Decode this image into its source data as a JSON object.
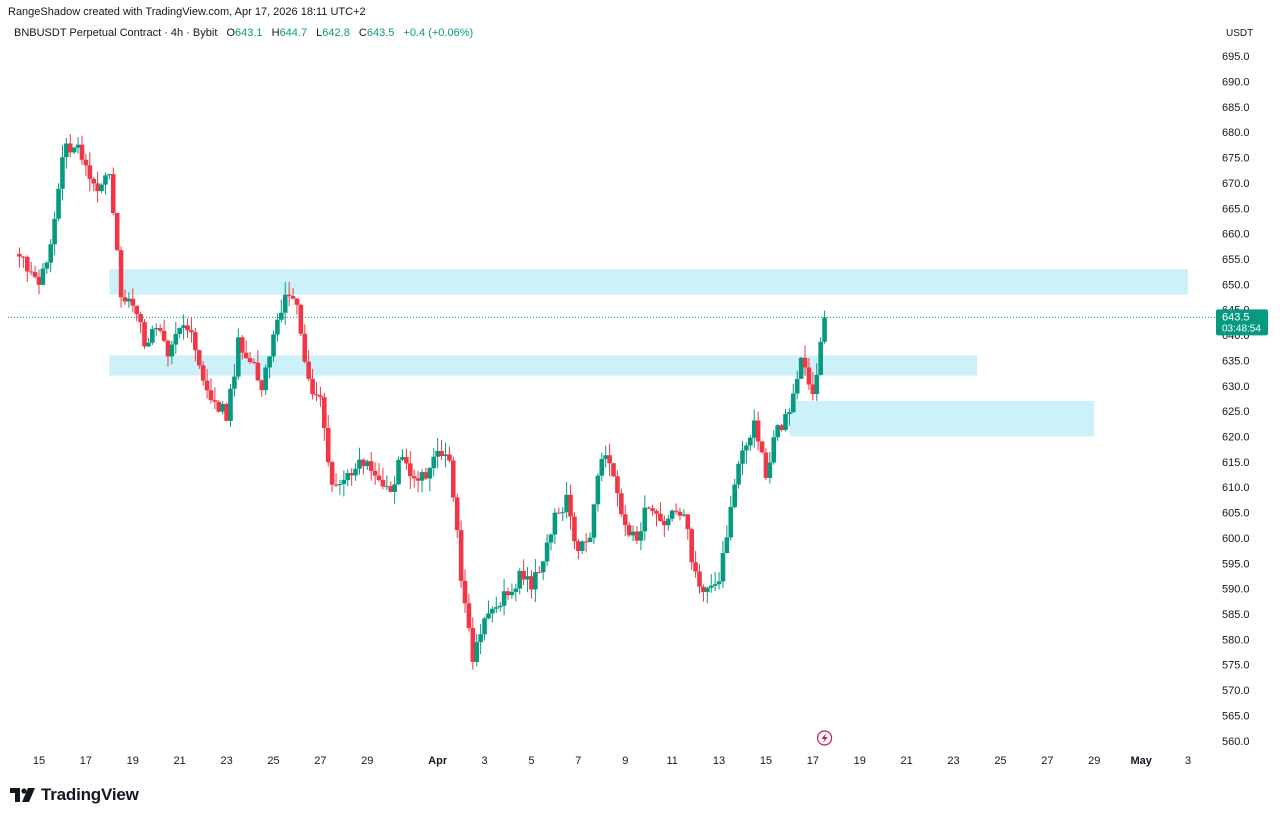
{
  "header": {
    "credit": "RangeShadow created with TradingView.com, Apr 17, 2026 18:11 UTC+2",
    "symbol": "BNBUSDT Perpetual Contract · 4h · Bybit",
    "o_label": "O",
    "o_value": "643.1",
    "h_label": "H",
    "h_value": "644.7",
    "l_label": "L",
    "l_value": "642.8",
    "c_label": "C",
    "c_value": "643.5",
    "change": "+0.4 (+0.06%)",
    "currency": "USDT"
  },
  "price_badge": {
    "price": "643.5",
    "countdown": "03:48:54"
  },
  "brand": {
    "name": "TradingView",
    "icon": "tradingview-logo-icon"
  },
  "colors": {
    "up": "#089981",
    "down": "#f23645",
    "zone": "#cdf1f8",
    "badge": "#089981"
  },
  "chart_data": {
    "type": "candlestick",
    "interval": "4h",
    "ylim": [
      557,
      697
    ],
    "ytick_values": [
      560,
      565,
      570,
      575,
      580,
      585,
      590,
      595,
      600,
      605,
      610,
      615,
      620,
      625,
      630,
      635,
      640,
      645,
      650,
      655,
      660,
      665,
      670,
      675,
      680,
      685,
      690,
      695
    ],
    "yticks": [
      "560.0",
      "565.0",
      "570.0",
      "575.0",
      "580.0",
      "585.0",
      "590.0",
      "595.0",
      "600.0",
      "605.0",
      "610.0",
      "615.0",
      "620.0",
      "625.0",
      "630.0",
      "635.0",
      "640.0",
      "645.0",
      "650.0",
      "655.0",
      "660.0",
      "665.0",
      "670.0",
      "675.0",
      "680.0",
      "685.0",
      "690.0",
      "695.0"
    ],
    "xticks": [
      {
        "label": "15",
        "date": "2026-03-15"
      },
      {
        "label": "17",
        "date": "2026-03-17"
      },
      {
        "label": "19",
        "date": "2026-03-19"
      },
      {
        "label": "21",
        "date": "2026-03-21"
      },
      {
        "label": "23",
        "date": "2026-03-23"
      },
      {
        "label": "25",
        "date": "2026-03-25"
      },
      {
        "label": "27",
        "date": "2026-03-27"
      },
      {
        "label": "29",
        "date": "2026-03-29"
      },
      {
        "label": "Apr",
        "date": "2026-04-01"
      },
      {
        "label": "3",
        "date": "2026-04-03"
      },
      {
        "label": "5",
        "date": "2026-04-05"
      },
      {
        "label": "7",
        "date": "2026-04-07"
      },
      {
        "label": "9",
        "date": "2026-04-09"
      },
      {
        "label": "11",
        "date": "2026-04-11"
      },
      {
        "label": "13",
        "date": "2026-04-13"
      },
      {
        "label": "15",
        "date": "2026-04-15"
      },
      {
        "label": "17",
        "date": "2026-04-17"
      },
      {
        "label": "19",
        "date": "2026-04-19"
      },
      {
        "label": "21",
        "date": "2026-04-21"
      },
      {
        "label": "23",
        "date": "2026-04-23"
      },
      {
        "label": "25",
        "date": "2026-04-25"
      },
      {
        "label": "27",
        "date": "2026-04-27"
      },
      {
        "label": "29",
        "date": "2026-04-29"
      },
      {
        "label": "May",
        "date": "2026-05-01"
      },
      {
        "label": "3",
        "date": "2026-05-03"
      }
    ],
    "anchors": [
      {
        "date": "2026-03-14",
        "close": 656
      },
      {
        "date": "2026-03-15",
        "close": 651
      },
      {
        "date": "2026-03-15T12:00",
        "close": 658
      },
      {
        "date": "2026-03-16",
        "close": 676
      },
      {
        "date": "2026-03-16T12:00",
        "close": 678
      },
      {
        "date": "2026-03-17",
        "close": 674
      },
      {
        "date": "2026-03-17T12:00",
        "close": 668
      },
      {
        "date": "2026-03-18",
        "close": 672
      },
      {
        "date": "2026-03-18T12:00",
        "close": 648
      },
      {
        "date": "2026-03-19",
        "close": 645
      },
      {
        "date": "2026-03-19T12:00",
        "close": 639
      },
      {
        "date": "2026-03-20",
        "close": 642
      },
      {
        "date": "2026-03-20T12:00",
        "close": 637
      },
      {
        "date": "2026-03-21",
        "close": 643
      },
      {
        "date": "2026-03-21T12:00",
        "close": 640
      },
      {
        "date": "2026-03-22",
        "close": 630
      },
      {
        "date": "2026-03-22T12:00",
        "close": 627
      },
      {
        "date": "2026-03-23",
        "close": 624
      },
      {
        "date": "2026-03-23T12:00",
        "close": 638
      },
      {
        "date": "2026-03-24",
        "close": 636
      },
      {
        "date": "2026-03-24T12:00",
        "close": 630
      },
      {
        "date": "2026-03-25",
        "close": 641
      },
      {
        "date": "2026-03-25T12:00",
        "close": 648
      },
      {
        "date": "2026-03-26",
        "close": 645
      },
      {
        "date": "2026-03-26T12:00",
        "close": 630
      },
      {
        "date": "2026-03-27",
        "close": 627
      },
      {
        "date": "2026-03-27T12:00",
        "close": 610
      },
      {
        "date": "2026-03-28",
        "close": 613
      },
      {
        "date": "2026-03-28T12:00",
        "close": 613
      },
      {
        "date": "2026-03-29",
        "close": 616
      },
      {
        "date": "2026-03-29T12:00",
        "close": 610
      },
      {
        "date": "2026-03-30",
        "close": 609
      },
      {
        "date": "2026-03-30T12:00",
        "close": 617
      },
      {
        "date": "2026-03-31",
        "close": 611
      },
      {
        "date": "2026-03-31T12:00",
        "close": 612
      },
      {
        "date": "2026-04-01",
        "close": 617
      },
      {
        "date": "2026-04-01T12:00",
        "close": 616
      },
      {
        "date": "2026-04-02",
        "close": 592
      },
      {
        "date": "2026-04-02T12:00",
        "close": 575
      },
      {
        "date": "2026-04-03",
        "close": 584
      },
      {
        "date": "2026-04-03T12:00",
        "close": 587
      },
      {
        "date": "2026-04-04",
        "close": 589
      },
      {
        "date": "2026-04-04T12:00",
        "close": 592
      },
      {
        "date": "2026-04-05",
        "close": 591
      },
      {
        "date": "2026-04-05T12:00",
        "close": 596
      },
      {
        "date": "2026-04-06",
        "close": 604
      },
      {
        "date": "2026-04-06T12:00",
        "close": 607
      },
      {
        "date": "2026-04-07",
        "close": 597
      },
      {
        "date": "2026-04-07T12:00",
        "close": 600
      },
      {
        "date": "2026-04-08",
        "close": 617
      },
      {
        "date": "2026-04-08T12:00",
        "close": 612
      },
      {
        "date": "2026-04-09",
        "close": 603
      },
      {
        "date": "2026-04-09T12:00",
        "close": 600
      },
      {
        "date": "2026-04-10",
        "close": 607
      },
      {
        "date": "2026-04-10T12:00",
        "close": 603
      },
      {
        "date": "2026-04-11",
        "close": 606
      },
      {
        "date": "2026-04-11T12:00",
        "close": 605
      },
      {
        "date": "2026-04-12",
        "close": 592
      },
      {
        "date": "2026-04-12T12:00",
        "close": 590
      },
      {
        "date": "2026-04-13",
        "close": 593
      },
      {
        "date": "2026-04-13T12:00",
        "close": 606
      },
      {
        "date": "2026-04-14",
        "close": 617
      },
      {
        "date": "2026-04-14T12:00",
        "close": 623
      },
      {
        "date": "2026-04-15",
        "close": 612
      },
      {
        "date": "2026-04-15T12:00",
        "close": 622
      },
      {
        "date": "2026-04-16",
        "close": 624
      },
      {
        "date": "2026-04-16T12:00",
        "close": 635
      },
      {
        "date": "2026-04-17",
        "close": 628
      },
      {
        "date": "2026-04-17T12:00",
        "close": 643.5
      }
    ],
    "current_price": 643.5,
    "zones": [
      {
        "from_date": "2026-03-18",
        "to_date": "2026-05-03",
        "low": 648,
        "high": 653
      },
      {
        "from_date": "2026-03-18",
        "to_date": "2026-04-24",
        "low": 632,
        "high": 636
      },
      {
        "from_date": "2026-04-16",
        "to_date": "2026-04-29",
        "low": 620,
        "high": 627
      }
    ],
    "event_marker": {
      "date": "2026-04-17T12:00",
      "icon": "lightning-icon"
    }
  }
}
